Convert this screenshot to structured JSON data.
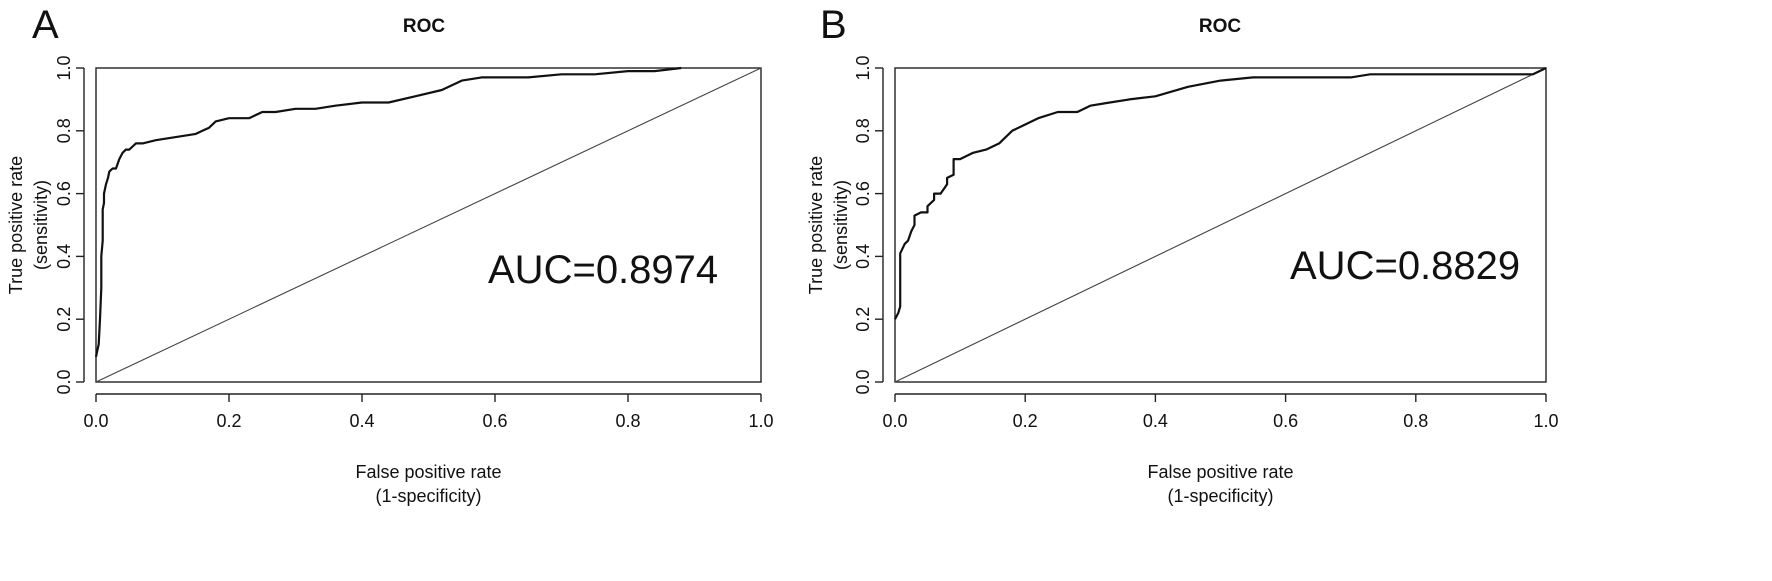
{
  "chart_data": [
    {
      "type": "line",
      "panel_label": "A",
      "title": "ROC",
      "xlabel": [
        "False positive rate",
        "(1-specificity)"
      ],
      "ylabel": [
        "True positive rate",
        "(sensitivity)"
      ],
      "xlim": [
        0,
        1
      ],
      "ylim": [
        0,
        1
      ],
      "xticks": [
        "0.0",
        "0.2",
        "0.4",
        "0.6",
        "0.8",
        "1.0"
      ],
      "yticks": [
        "0.0",
        "0.2",
        "0.4",
        "0.6",
        "0.8",
        "1.0"
      ],
      "grid": false,
      "annotation": "AUC=0.8974",
      "reference_line": {
        "x": [
          0,
          1
        ],
        "y": [
          0,
          1
        ]
      },
      "series": [
        {
          "x": [
            0.0,
            0.002,
            0.004,
            0.006,
            0.008,
            0.008,
            0.01,
            0.01,
            0.012,
            0.012,
            0.015,
            0.018,
            0.02,
            0.025,
            0.03,
            0.035,
            0.04,
            0.045,
            0.05,
            0.055,
            0.06,
            0.065,
            0.07,
            0.09,
            0.12,
            0.15,
            0.16,
            0.17,
            0.18,
            0.2,
            0.23,
            0.25,
            0.27,
            0.3,
            0.33,
            0.36,
            0.4,
            0.44,
            0.48,
            0.52,
            0.55,
            0.58,
            0.65,
            0.7,
            0.75,
            0.8,
            0.84,
            0.88
          ],
          "y": [
            0.08,
            0.1,
            0.12,
            0.2,
            0.3,
            0.4,
            0.45,
            0.55,
            0.57,
            0.6,
            0.63,
            0.65,
            0.67,
            0.68,
            0.68,
            0.71,
            0.73,
            0.74,
            0.74,
            0.75,
            0.76,
            0.76,
            0.76,
            0.77,
            0.78,
            0.79,
            0.8,
            0.81,
            0.83,
            0.84,
            0.84,
            0.86,
            0.86,
            0.87,
            0.87,
            0.88,
            0.89,
            0.89,
            0.91,
            0.93,
            0.96,
            0.97,
            0.97,
            0.98,
            0.98,
            0.99,
            0.99,
            1.0
          ]
        }
      ]
    },
    {
      "type": "line",
      "panel_label": "B",
      "title": "ROC",
      "xlabel": [
        "False positive rate",
        "(1-specificity)"
      ],
      "ylabel": [
        "True positive rate",
        "(sensitivity)"
      ],
      "xlim": [
        0,
        1
      ],
      "ylim": [
        0,
        1
      ],
      "xticks": [
        "0.0",
        "0.2",
        "0.4",
        "0.6",
        "0.8",
        "1.0"
      ],
      "yticks": [
        "0.0",
        "0.2",
        "0.4",
        "0.6",
        "0.8",
        "1.0"
      ],
      "grid": false,
      "annotation": "AUC=0.8829",
      "reference_line": {
        "x": [
          0,
          1
        ],
        "y": [
          0,
          1
        ]
      },
      "series": [
        {
          "x": [
            0.0,
            0.005,
            0.008,
            0.008,
            0.015,
            0.02,
            0.025,
            0.03,
            0.03,
            0.04,
            0.05,
            0.05,
            0.06,
            0.06,
            0.07,
            0.08,
            0.08,
            0.09,
            0.09,
            0.1,
            0.12,
            0.14,
            0.16,
            0.17,
            0.18,
            0.2,
            0.22,
            0.25,
            0.28,
            0.3,
            0.33,
            0.36,
            0.4,
            0.45,
            0.5,
            0.55,
            0.6,
            0.65,
            0.7,
            0.73,
            0.75,
            0.8,
            0.85,
            0.9,
            0.95,
            0.98,
            1.0
          ],
          "y": [
            0.2,
            0.22,
            0.24,
            0.41,
            0.44,
            0.45,
            0.48,
            0.5,
            0.53,
            0.54,
            0.54,
            0.56,
            0.58,
            0.6,
            0.6,
            0.63,
            0.65,
            0.66,
            0.71,
            0.71,
            0.73,
            0.74,
            0.76,
            0.78,
            0.8,
            0.82,
            0.84,
            0.86,
            0.86,
            0.88,
            0.89,
            0.9,
            0.91,
            0.94,
            0.96,
            0.97,
            0.97,
            0.97,
            0.97,
            0.98,
            0.98,
            0.98,
            0.98,
            0.98,
            0.98,
            0.98,
            1.0
          ]
        }
      ]
    }
  ]
}
